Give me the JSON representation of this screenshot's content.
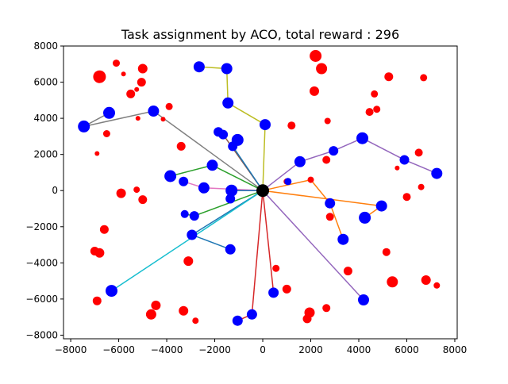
{
  "chart_data": {
    "type": "scatter",
    "title": "Task assignment by ACO, total reward : 296",
    "xlabel": "",
    "ylabel": "",
    "xlim": [
      -8300,
      8100
    ],
    "ylim": [
      -8200,
      8000
    ],
    "xticks": [
      -8000,
      -6000,
      -4000,
      -2000,
      0,
      2000,
      4000,
      6000,
      8000
    ],
    "xtick_labels": [
      "−8000",
      "−6000",
      "−4000",
      "−2000",
      "0",
      "2000",
      "4000",
      "6000",
      "8000"
    ],
    "yticks": [
      -8000,
      -6000,
      -4000,
      -2000,
      0,
      2000,
      4000,
      6000,
      8000
    ],
    "ytick_labels": [
      "−8000",
      "−6000",
      "−4000",
      "−2000",
      "0",
      "2000",
      "4000",
      "6000",
      "8000"
    ],
    "grid": false,
    "legend": "none",
    "depot": {
      "x": 0,
      "y": 0,
      "color": "#000000"
    },
    "point_series": [
      {
        "color": "#ff0000",
        "points": [
          {
            "x": -6800,
            "y": 6300,
            "s": 8
          },
          {
            "x": -6100,
            "y": 7050,
            "s": 4.5
          },
          {
            "x": -5800,
            "y": 6450,
            "s": 3
          },
          {
            "x": -5000,
            "y": 6750,
            "s": 6
          },
          {
            "x": -5050,
            "y": 6000,
            "s": 5.5
          },
          {
            "x": -5500,
            "y": 5350,
            "s": 5.5
          },
          {
            "x": -5250,
            "y": 5600,
            "s": 3
          },
          {
            "x": -3900,
            "y": 4650,
            "s": 4.5
          },
          {
            "x": -5200,
            "y": 4000,
            "s": 3
          },
          {
            "x": -4150,
            "y": 3950,
            "s": 3
          },
          {
            "x": -6500,
            "y": 3150,
            "s": 4.5
          },
          {
            "x": -6900,
            "y": 2050,
            "s": 3
          },
          {
            "x": -3400,
            "y": 2450,
            "s": 5.5
          },
          {
            "x": -5900,
            "y": -150,
            "s": 6
          },
          {
            "x": -5250,
            "y": 50,
            "s": 4
          },
          {
            "x": -5000,
            "y": -500,
            "s": 5.5
          },
          {
            "x": -6600,
            "y": -2150,
            "s": 5.5
          },
          {
            "x": -7000,
            "y": -3350,
            "s": 5.5
          },
          {
            "x": -6800,
            "y": -3450,
            "s": 6
          },
          {
            "x": -3100,
            "y": -3900,
            "s": 6
          },
          {
            "x": -6900,
            "y": -6100,
            "s": 5.5
          },
          {
            "x": -4450,
            "y": -6350,
            "s": 6
          },
          {
            "x": -4650,
            "y": -6850,
            "s": 6.5
          },
          {
            "x": -3300,
            "y": -6650,
            "s": 6
          },
          {
            "x": -2800,
            "y": -7200,
            "s": 4
          },
          {
            "x": 550,
            "y": -4300,
            "s": 4.5
          },
          {
            "x": 1000,
            "y": -5450,
            "s": 5.5
          },
          {
            "x": 1950,
            "y": -6750,
            "s": 6.5
          },
          {
            "x": 1850,
            "y": -7100,
            "s": 5.5
          },
          {
            "x": 2650,
            "y": -6500,
            "s": 5
          },
          {
            "x": 3550,
            "y": -4450,
            "s": 5.5
          },
          {
            "x": 5400,
            "y": -5050,
            "s": 7
          },
          {
            "x": 5150,
            "y": -3400,
            "s": 5
          },
          {
            "x": 6800,
            "y": -4950,
            "s": 6
          },
          {
            "x": 7250,
            "y": -5250,
            "s": 4
          },
          {
            "x": 2800,
            "y": -1450,
            "s": 5
          },
          {
            "x": 1000,
            "y": 500,
            "s": 4
          },
          {
            "x": 2000,
            "y": 600,
            "s": 4
          },
          {
            "x": 2650,
            "y": 1700,
            "s": 5
          },
          {
            "x": 1200,
            "y": 3600,
            "s": 5
          },
          {
            "x": 2700,
            "y": 3850,
            "s": 4
          },
          {
            "x": 2150,
            "y": 5500,
            "s": 6
          },
          {
            "x": 2200,
            "y": 7450,
            "s": 7.5
          },
          {
            "x": 2450,
            "y": 6750,
            "s": 7
          },
          {
            "x": 4450,
            "y": 4350,
            "s": 5
          },
          {
            "x": 4650,
            "y": 5350,
            "s": 4.5
          },
          {
            "x": 4750,
            "y": 4500,
            "s": 4.5
          },
          {
            "x": 5250,
            "y": 6300,
            "s": 5.5
          },
          {
            "x": 6700,
            "y": 6250,
            "s": 4.5
          },
          {
            "x": 5600,
            "y": 1250,
            "s": 3
          },
          {
            "x": 6500,
            "y": 2100,
            "s": 5
          },
          {
            "x": 6000,
            "y": -350,
            "s": 5
          },
          {
            "x": 6600,
            "y": 200,
            "s": 4
          }
        ]
      },
      {
        "color": "#0000ff",
        "points": [
          {
            "x": -2650,
            "y": 6850,
            "s": 7
          },
          {
            "x": -1500,
            "y": 6750,
            "s": 7
          },
          {
            "x": -1450,
            "y": 4850,
            "s": 7
          },
          {
            "x": 100,
            "y": 3650,
            "s": 7
          },
          {
            "x": -4550,
            "y": 4400,
            "s": 7
          },
          {
            "x": -6400,
            "y": 4300,
            "s": 7.5
          },
          {
            "x": -7450,
            "y": 3550,
            "s": 7.5
          },
          {
            "x": -1850,
            "y": 3250,
            "s": 6
          },
          {
            "x": -1650,
            "y": 3100,
            "s": 6
          },
          {
            "x": -1250,
            "y": 2450,
            "s": 6
          },
          {
            "x": -1050,
            "y": 2800,
            "s": 7.5
          },
          {
            "x": -2100,
            "y": 1400,
            "s": 7
          },
          {
            "x": -3850,
            "y": 800,
            "s": 7.5
          },
          {
            "x": -3300,
            "y": 500,
            "s": 6
          },
          {
            "x": -2450,
            "y": 150,
            "s": 7
          },
          {
            "x": -1300,
            "y": 0,
            "s": 7.5
          },
          {
            "x": -1350,
            "y": -450,
            "s": 6
          },
          {
            "x": -3250,
            "y": -1300,
            "s": 5
          },
          {
            "x": -2850,
            "y": -1400,
            "s": 6
          },
          {
            "x": -2950,
            "y": -2450,
            "s": 6.5
          },
          {
            "x": -1350,
            "y": -3250,
            "s": 6.5
          },
          {
            "x": -6300,
            "y": -5550,
            "s": 7.5
          },
          {
            "x": -1050,
            "y": -7200,
            "s": 6.5
          },
          {
            "x": -450,
            "y": -6850,
            "s": 6.5
          },
          {
            "x": 450,
            "y": -5650,
            "s": 6.5
          },
          {
            "x": 1050,
            "y": 500,
            "s": 4.5
          },
          {
            "x": 1550,
            "y": 1600,
            "s": 7
          },
          {
            "x": 2950,
            "y": 2200,
            "s": 6
          },
          {
            "x": 4150,
            "y": 2900,
            "s": 7.5
          },
          {
            "x": 5900,
            "y": 1700,
            "s": 6
          },
          {
            "x": 7250,
            "y": 950,
            "s": 7
          },
          {
            "x": 2800,
            "y": -700,
            "s": 6.5
          },
          {
            "x": 4250,
            "y": -1500,
            "s": 7.5
          },
          {
            "x": 4950,
            "y": -850,
            "s": 7
          },
          {
            "x": 3350,
            "y": -2700,
            "s": 7
          },
          {
            "x": 4200,
            "y": -6050,
            "s": 7
          }
        ]
      }
    ],
    "routes": [
      {
        "color": "#bcbd22",
        "points": [
          [
            0,
            0
          ],
          [
            100,
            3650
          ],
          [
            -1450,
            4850
          ],
          [
            -1500,
            6750
          ],
          [
            -2650,
            6850
          ]
        ]
      },
      {
        "color": "#7f7f7f",
        "points": [
          [
            0,
            0
          ],
          [
            -4550,
            4400
          ],
          [
            -7450,
            3550
          ],
          [
            -6400,
            4300
          ]
        ]
      },
      {
        "color": "#8c564b",
        "points": [
          [
            0,
            0
          ],
          [
            -1650,
            3100
          ],
          [
            -1850,
            3250
          ]
        ]
      },
      {
        "color": "#2ca02c",
        "points": [
          [
            0,
            0
          ],
          [
            -2100,
            1400
          ],
          [
            -3850,
            800
          ]
        ]
      },
      {
        "color": "#2ca02c",
        "points": [
          [
            0,
            0
          ],
          [
            -2850,
            -1400
          ],
          [
            -3250,
            -1300
          ]
        ]
      },
      {
        "color": "#e377c2",
        "points": [
          [
            0,
            0
          ],
          [
            -2450,
            150
          ],
          [
            -3300,
            500
          ]
        ]
      },
      {
        "color": "#1f77b4",
        "points": [
          [
            0,
            0
          ],
          [
            -1250,
            2450
          ],
          [
            -1050,
            2800
          ]
        ]
      },
      {
        "color": "#1f77b4",
        "points": [
          [
            0,
            0
          ],
          [
            -1300,
            0
          ],
          [
            -1350,
            -450
          ]
        ]
      },
      {
        "color": "#1f77b4",
        "points": [
          [
            0,
            0
          ],
          [
            -2950,
            -2450
          ],
          [
            -1350,
            -3250
          ]
        ]
      },
      {
        "color": "#17becf",
        "points": [
          [
            0,
            0
          ],
          [
            -6300,
            -5550
          ]
        ]
      },
      {
        "color": "#d62728",
        "points": [
          [
            0,
            0
          ],
          [
            -450,
            -6850
          ],
          [
            -1050,
            -7200
          ]
        ]
      },
      {
        "color": "#d62728",
        "points": [
          [
            0,
            0
          ],
          [
            450,
            -5650
          ]
        ]
      },
      {
        "color": "#ff7f0e",
        "points": [
          [
            0,
            0
          ],
          [
            2000,
            600
          ],
          [
            2800,
            -700
          ],
          [
            3350,
            -2700
          ]
        ]
      },
      {
        "color": "#ff7f0e",
        "points": [
          [
            0,
            0
          ],
          [
            4950,
            -850
          ],
          [
            4250,
            -1500
          ]
        ]
      },
      {
        "color": "#9467bd",
        "points": [
          [
            0,
            0
          ],
          [
            1550,
            1600
          ],
          [
            2950,
            2200
          ],
          [
            4150,
            2900
          ],
          [
            5900,
            1700
          ],
          [
            7250,
            950
          ]
        ]
      },
      {
        "color": "#9467bd",
        "points": [
          [
            0,
            0
          ],
          [
            4200,
            -6050
          ]
        ]
      }
    ]
  }
}
